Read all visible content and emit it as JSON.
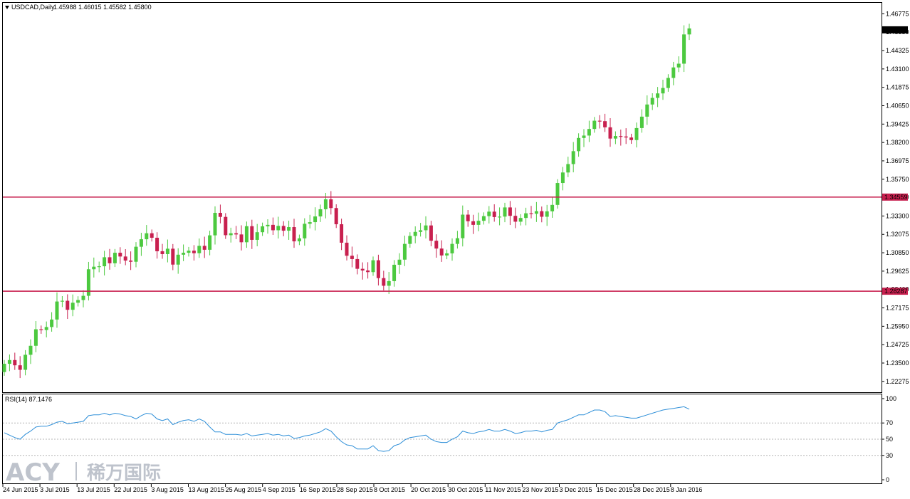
{
  "header": {
    "symbol_label": "USDCAD,Daily",
    "ohlc_label": "1.45988 1.46015 1.45582 1.45800"
  },
  "rsi_header": {
    "label": "RSI(14) 87.1476"
  },
  "watermark": {
    "brand": "ACY",
    "chinese": "稀万国际"
  },
  "colors": {
    "bull": "#4CC93F",
    "bear": "#C8204F",
    "line": "#C8204F",
    "rsi": "#2E8FD8",
    "grid": "#b5b5b5"
  },
  "chart_data": [
    {
      "type": "candlestick",
      "title": "USDCAD,Daily",
      "ylim": [
        1.2165,
        1.47125
      ],
      "y_ticks": [
        "1.46775",
        "1.45550",
        "1.44325",
        "1.43100",
        "1.41875",
        "1.40650",
        "1.39425",
        "1.38200",
        "1.36975",
        "1.35750",
        "1.34550",
        "1.33300",
        "1.32075",
        "1.30850",
        "1.29625",
        "1.28400",
        "1.27175",
        "1.25950",
        "1.24725",
        "1.23500",
        "1.22275"
      ],
      "current_price_label": "1.45800",
      "horizontal_lines": [
        {
          "value": 1.34559,
          "label": "1.34559"
        },
        {
          "value": 1.28287,
          "label": "1.28287"
        }
      ],
      "x_labels": [
        "24 Jun 2015",
        "3 Jul 2015",
        "13 Jul 2015",
        "22 Jul 2015",
        "3 Aug 2015",
        "13 Aug 2015",
        "25 Aug 2015",
        "4 Sep 2015",
        "16 Sep 2015",
        "28 Sep 2015",
        "8 Oct 2015",
        "20 Oct 2015",
        "30 Oct 2015",
        "11 Nov 2015",
        "23 Nov 2015",
        "3 Dec 2015",
        "15 Dec 2015",
        "28 Dec 2015",
        "8 Jan 2016"
      ],
      "closes": [
        1.2345,
        1.237,
        1.2335,
        1.2305,
        1.2405,
        1.2465,
        1.2575,
        1.257,
        1.259,
        1.264,
        1.276,
        1.2765,
        1.2705,
        1.2752,
        1.277,
        1.2798,
        1.2975,
        1.2992,
        1.2995,
        1.3055,
        1.3015,
        1.3085,
        1.306,
        1.3033,
        1.3025,
        1.3125,
        1.3175,
        1.3215,
        1.3185,
        1.3095,
        1.3076,
        1.3112,
        1.3006,
        1.3072,
        1.3085,
        1.3099,
        1.3082,
        1.3131,
        1.3105,
        1.3201,
        1.3351,
        1.3324,
        1.3202,
        1.3215,
        1.3207,
        1.3155,
        1.3262,
        1.3171,
        1.3222,
        1.3261,
        1.3271,
        1.3235,
        1.3264,
        1.3232,
        1.3256,
        1.3161,
        1.3181,
        1.3278,
        1.3289,
        1.3327,
        1.3375,
        1.3441,
        1.3383,
        1.3275,
        1.3152,
        1.3065,
        1.3043,
        1.2978,
        1.2967,
        1.2956,
        1.3035,
        1.2916,
        1.2865,
        1.2896,
        1.3005,
        1.3039,
        1.3144,
        1.3197,
        1.3224,
        1.3235,
        1.3267,
        1.3165,
        1.3113,
        1.3067,
        1.3081,
        1.3144,
        1.3182,
        1.3339,
        1.3295,
        1.3271,
        1.3298,
        1.3329,
        1.3359,
        1.3323,
        1.3326,
        1.3387,
        1.3331,
        1.3292,
        1.3317,
        1.3348,
        1.3345,
        1.3362,
        1.3325,
        1.3361,
        1.3404,
        1.355,
        1.362,
        1.3676,
        1.3762,
        1.385,
        1.3866,
        1.391,
        1.3965,
        1.3962,
        1.3921,
        1.3846,
        1.3863,
        1.386,
        1.3853,
        1.3836,
        1.3916,
        1.3992,
        1.4073,
        1.4117,
        1.4147,
        1.4183,
        1.425,
        1.432,
        1.4345,
        1.454,
        1.458
      ]
    },
    {
      "type": "line",
      "title": "RSI(14) 87.1476",
      "ylim": [
        0,
        100
      ],
      "y_ticks": [
        "100",
        "70",
        "50",
        "30",
        "0"
      ],
      "levels": [
        70,
        50,
        30
      ],
      "values": [
        58,
        55,
        52,
        50,
        56,
        60,
        65,
        66,
        66,
        68,
        71,
        72,
        69,
        70,
        71,
        72,
        79,
        80,
        80,
        82,
        80,
        82,
        81,
        79,
        78,
        75,
        79,
        82,
        81,
        75,
        73,
        75,
        68,
        71,
        73,
        74,
        72,
        75,
        72,
        65,
        59,
        59,
        56,
        56,
        56,
        55,
        57,
        54,
        55,
        56,
        57,
        55,
        56,
        54,
        55,
        51,
        52,
        54,
        55,
        57,
        59,
        63,
        60,
        53,
        47,
        43,
        42,
        38,
        38,
        38,
        42,
        36,
        35,
        36,
        42,
        44,
        49,
        52,
        53,
        54,
        55,
        50,
        47,
        46,
        46,
        50,
        53,
        60,
        58,
        57,
        59,
        60,
        62,
        60,
        60,
        62,
        60,
        57,
        58,
        60,
        60,
        61,
        59,
        61,
        62,
        70,
        72,
        74,
        77,
        80,
        80,
        83,
        86,
        86,
        84,
        78,
        79,
        78,
        77,
        76,
        76,
        78,
        80,
        82,
        84,
        86,
        87,
        88,
        89,
        90,
        87
      ]
    }
  ]
}
